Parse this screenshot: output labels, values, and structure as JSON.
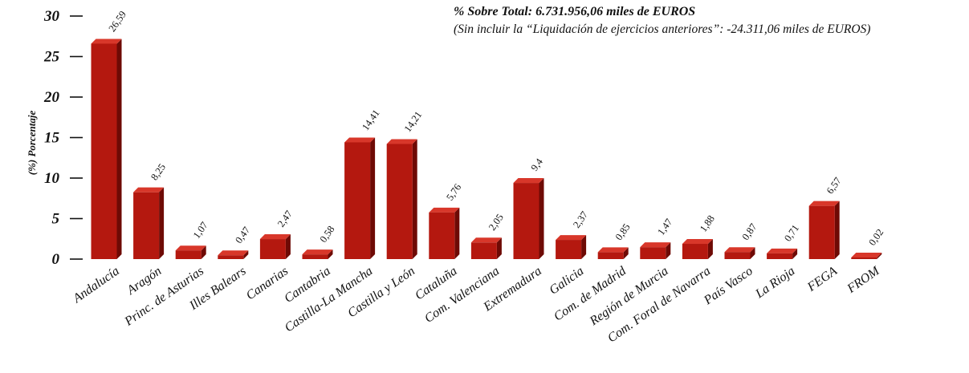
{
  "chart_data": {
    "type": "bar",
    "title": "% Sobre Total: 6.731.956,06 miles de EUROS",
    "subtitle": "(Sin incluir la “Liquidación de ejercicios anteriores”: -24.311,06  miles de EUROS)",
    "xlabel": "",
    "ylabel": "(%) Porcentaje",
    "ylim": [
      0,
      30
    ],
    "yticks": [
      "0",
      "5",
      "10",
      "15",
      "20",
      "25",
      "30"
    ],
    "categories": [
      "Andalucía",
      "Aragón",
      "Princ. de Asturias",
      "Illes Balears",
      "Canarias",
      "Cantabria",
      "Castilla-La Mancha",
      "Castilla y León",
      "Cataluña",
      "Com. Valenciana",
      "Extremadura",
      "Galicia",
      "Com. de Madrid",
      "Región de Murcia",
      "Com. Foral de Navarra",
      "País Vasco",
      "La Rioja",
      "FEGA",
      "FROM"
    ],
    "values": [
      26.59,
      8.25,
      1.07,
      0.47,
      2.47,
      0.58,
      14.41,
      14.21,
      5.76,
      2.05,
      9.4,
      2.37,
      0.85,
      1.47,
      1.88,
      0.87,
      0.71,
      6.57,
      0.02
    ],
    "value_labels": [
      "26,59",
      "8,25",
      "1,07",
      "0,47",
      "2,47",
      "0,58",
      "14,41",
      "14,21",
      "5,76",
      "2,05",
      "9,4",
      "2,37",
      "0,85",
      "1,47",
      "1,88",
      "0,87",
      "0,71",
      "6,57",
      "0,02"
    ],
    "colors": {
      "bar_front": "#b4180f",
      "bar_side": "#6e0a05",
      "bar_top": "#d8372a"
    },
    "grid": false,
    "legend": "none"
  }
}
